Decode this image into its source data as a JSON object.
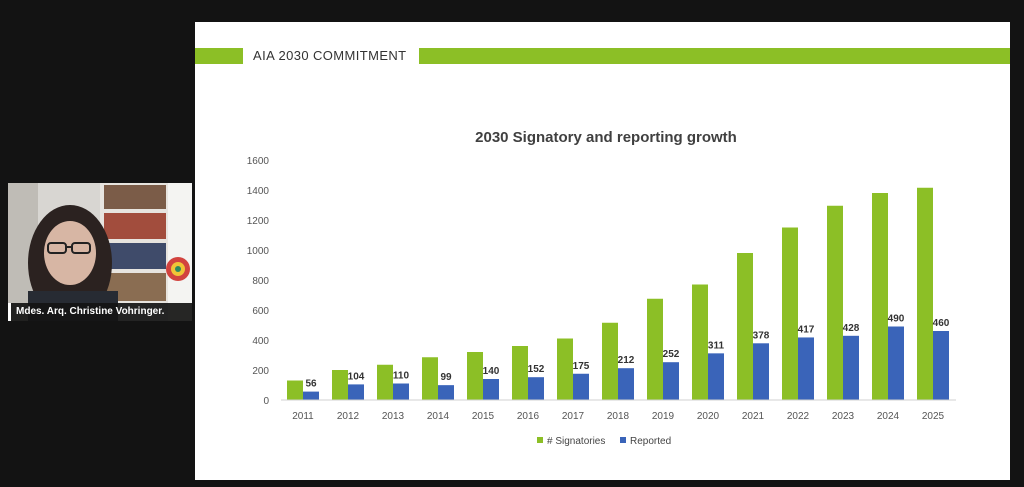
{
  "participant": {
    "name": "Mdes. Arq. Christine Vohringer."
  },
  "slide": {
    "header": "AIA 2030 COMMITMENT",
    "colors": {
      "accent": "#8cbf26",
      "signatories": "#8cbf26",
      "reported": "#3a64b9"
    }
  },
  "chart_data": {
    "type": "bar",
    "title": "2030 Signatory and reporting growth",
    "categories": [
      "2011",
      "2012",
      "2013",
      "2014",
      "2015",
      "2016",
      "2017",
      "2018",
      "2019",
      "2020",
      "2021",
      "2022",
      "2023",
      "2024",
      "2025"
    ],
    "series": [
      {
        "name": "# Signatories",
        "values": [
          130,
          200,
          235,
          285,
          320,
          360,
          410,
          515,
          675,
          770,
          980,
          1150,
          1295,
          1380,
          1415
        ]
      },
      {
        "name": "Reported",
        "values": [
          56,
          104,
          110,
          99,
          140,
          152,
          175,
          212,
          252,
          311,
          378,
          417,
          428,
          490,
          460
        ]
      }
    ],
    "data_labels": [
      "56",
      "104",
      "110",
      "99",
      "140",
      "152",
      "175",
      "212",
      "252",
      "311",
      "378",
      "417",
      "428",
      "490",
      "460"
    ],
    "yticks": [
      "0",
      "200",
      "400",
      "600",
      "800",
      "1000",
      "1200",
      "1400",
      "1600"
    ],
    "ylim": [
      0,
      1600
    ],
    "grid": false,
    "legend": "bottom"
  }
}
